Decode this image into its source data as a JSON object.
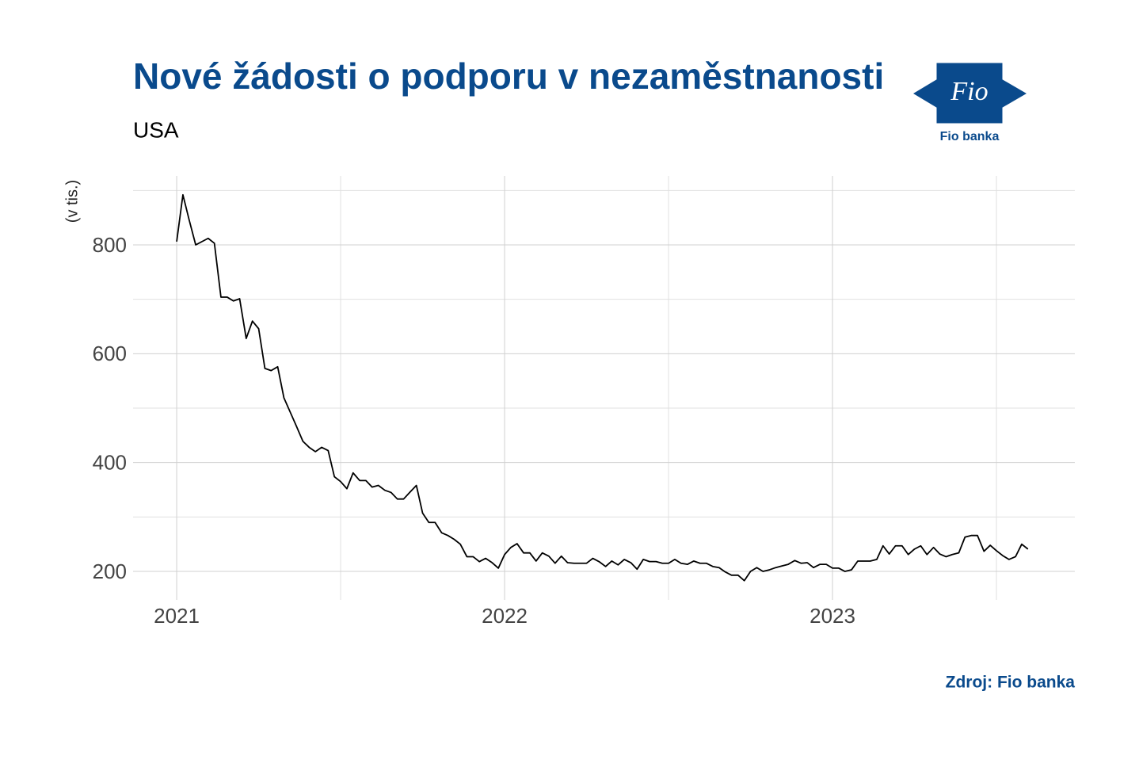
{
  "chart_data": {
    "type": "line",
    "title": "Nové žádosti o podporu v nezaměstnanosti",
    "subtitle": "USA",
    "y_label": "(v tis.)",
    "source": "Zdroj: Fio banka",
    "logo_text": "Fio",
    "logo_caption": "Fio banka",
    "xlim": [
      2020.867,
      2023.739
    ],
    "ylim": [
      147.6,
      926.7
    ],
    "xticks": [
      2021,
      2022,
      2023
    ],
    "yticks": [
      200,
      400,
      600,
      800
    ],
    "minor_xticks": [
      2021.5,
      2022.5,
      2023.5
    ],
    "minor_yticks": [
      300,
      500,
      700,
      900
    ],
    "grid": true,
    "series": [
      {
        "color": "#000000",
        "x": [
          2021.0,
          2021.019,
          2021.038,
          2021.058,
          2021.077,
          2021.096,
          2021.115,
          2021.135,
          2021.154,
          2021.173,
          2021.192,
          2021.212,
          2021.231,
          2021.25,
          2021.269,
          2021.288,
          2021.308,
          2021.327,
          2021.346,
          2021.365,
          2021.385,
          2021.404,
          2021.423,
          2021.442,
          2021.462,
          2021.481,
          2021.5,
          2021.519,
          2021.538,
          2021.558,
          2021.577,
          2021.596,
          2021.615,
          2021.635,
          2021.654,
          2021.673,
          2021.692,
          2021.712,
          2021.731,
          2021.75,
          2021.769,
          2021.788,
          2021.808,
          2021.827,
          2021.846,
          2021.865,
          2021.885,
          2021.904,
          2021.923,
          2021.942,
          2021.962,
          2021.981,
          2022.0,
          2022.019,
          2022.038,
          2022.058,
          2022.077,
          2022.096,
          2022.115,
          2022.135,
          2022.154,
          2022.173,
          2022.192,
          2022.212,
          2022.231,
          2022.25,
          2022.269,
          2022.288,
          2022.308,
          2022.327,
          2022.346,
          2022.365,
          2022.385,
          2022.404,
          2022.423,
          2022.442,
          2022.462,
          2022.481,
          2022.5,
          2022.519,
          2022.538,
          2022.558,
          2022.577,
          2022.596,
          2022.615,
          2022.635,
          2022.654,
          2022.673,
          2022.692,
          2022.712,
          2022.731,
          2022.75,
          2022.769,
          2022.788,
          2022.808,
          2022.827,
          2022.846,
          2022.865,
          2022.885,
          2022.904,
          2022.923,
          2022.942,
          2022.962,
          2022.981,
          2023.0,
          2023.019,
          2023.038,
          2023.058,
          2023.077,
          2023.096,
          2023.115,
          2023.135,
          2023.154,
          2023.173,
          2023.192,
          2023.212,
          2023.231,
          2023.25,
          2023.269,
          2023.288,
          2023.308,
          2023.327,
          2023.346,
          2023.365,
          2023.385,
          2023.404,
          2023.423,
          2023.442,
          2023.462,
          2023.481,
          2023.5,
          2023.519,
          2023.538,
          2023.558,
          2023.577,
          2023.596
        ],
        "values": [
          806,
          892,
          846,
          800,
          806,
          812,
          803,
          704,
          704,
          697,
          701,
          628,
          660,
          646,
          573,
          569,
          576,
          519,
          493,
          467,
          439,
          428,
          420,
          428,
          422,
          374,
          365,
          352,
          381,
          367,
          367,
          355,
          358,
          349,
          345,
          333,
          333,
          346,
          358,
          307,
          290,
          290,
          271,
          266,
          259,
          250,
          227,
          227,
          218,
          224,
          216,
          206,
          231,
          244,
          251,
          234,
          234,
          219,
          234,
          228,
          215,
          228,
          216,
          215,
          215,
          215,
          224,
          218,
          209,
          219,
          212,
          222,
          216,
          204,
          222,
          218,
          218,
          215,
          215,
          222,
          215,
          213,
          219,
          215,
          215,
          209,
          207,
          199,
          193,
          193,
          183,
          200,
          207,
          200,
          203,
          207,
          210,
          213,
          220,
          215,
          216,
          207,
          213,
          213,
          206,
          206,
          200,
          203,
          219,
          219,
          219,
          222,
          247,
          232,
          247,
          247,
          231,
          241,
          247,
          231,
          244,
          232,
          227,
          231,
          234,
          263,
          266,
          266,
          237,
          248,
          238,
          229,
          222,
          227,
          250,
          241
        ]
      }
    ]
  }
}
